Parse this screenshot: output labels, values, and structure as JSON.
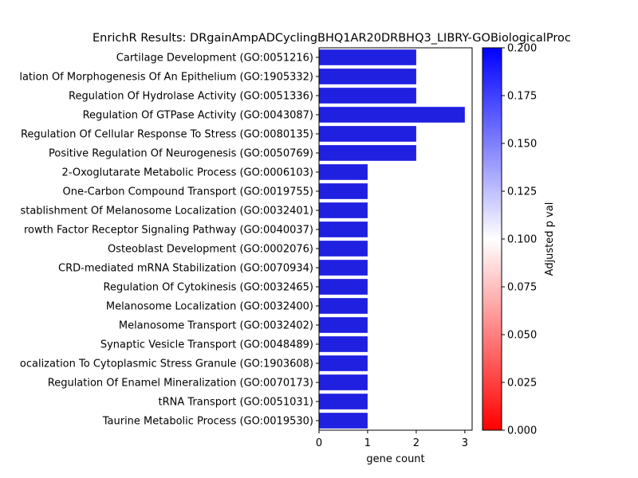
{
  "chart_data": {
    "type": "bar",
    "orientation": "horizontal",
    "title": "EnrichR Results: DRgainAmpADCyclingBHQ1AR20DRBHQ3_LIBRY-GOBiologicalProc",
    "xlabel": "gene count",
    "ylabel": "",
    "xlim": [
      0,
      3.15
    ],
    "xticks": [
      "0",
      "1",
      "2",
      "3"
    ],
    "bar_color": "#2020e0",
    "categories": [
      "Cartilage Development (GO:0051216)",
      "lation Of Morphogenesis Of An Epithelium (GO:1905332)",
      "Regulation Of Hydrolase Activity (GO:0051336)",
      "Regulation Of GTPase Activity (GO:0043087)",
      "Regulation Of Cellular Response To Stress (GO:0080135)",
      "Positive Regulation Of Neurogenesis (GO:0050769)",
      "2-Oxoglutarate Metabolic Process (GO:0006103)",
      "One-Carbon Compound Transport (GO:0019755)",
      "stablishment Of Melanosome Localization (GO:0032401)",
      "rowth Factor Receptor Signaling Pathway (GO:0040037)",
      "Osteoblast Development (GO:0002076)",
      "CRD-mediated mRNA Stabilization (GO:0070934)",
      "Regulation Of Cytokinesis (GO:0032465)",
      "Melanosome Localization (GO:0032400)",
      "Melanosome Transport (GO:0032402)",
      "Synaptic Vesicle Transport (GO:0048489)",
      "ocalization To Cytoplasmic Stress Granule (GO:1903608)",
      "Regulation Of Enamel Mineralization (GO:0070173)",
      "tRNA Transport (GO:0051031)",
      "Taurine Metabolic Process (GO:0019530)"
    ],
    "values": [
      2,
      2,
      2,
      3,
      2,
      2,
      1,
      1,
      1,
      1,
      1,
      1,
      1,
      1,
      1,
      1,
      1,
      1,
      1,
      1
    ],
    "colorbar": {
      "label": "Adjusted p val",
      "range": [
        0,
        0.2
      ],
      "ticks": [
        "0.000",
        "0.025",
        "0.050",
        "0.075",
        "0.100",
        "0.125",
        "0.150",
        "0.175",
        "0.200"
      ],
      "colors": [
        "#ff0000",
        "#ffffff",
        "#0000ff"
      ]
    },
    "grid": false
  }
}
